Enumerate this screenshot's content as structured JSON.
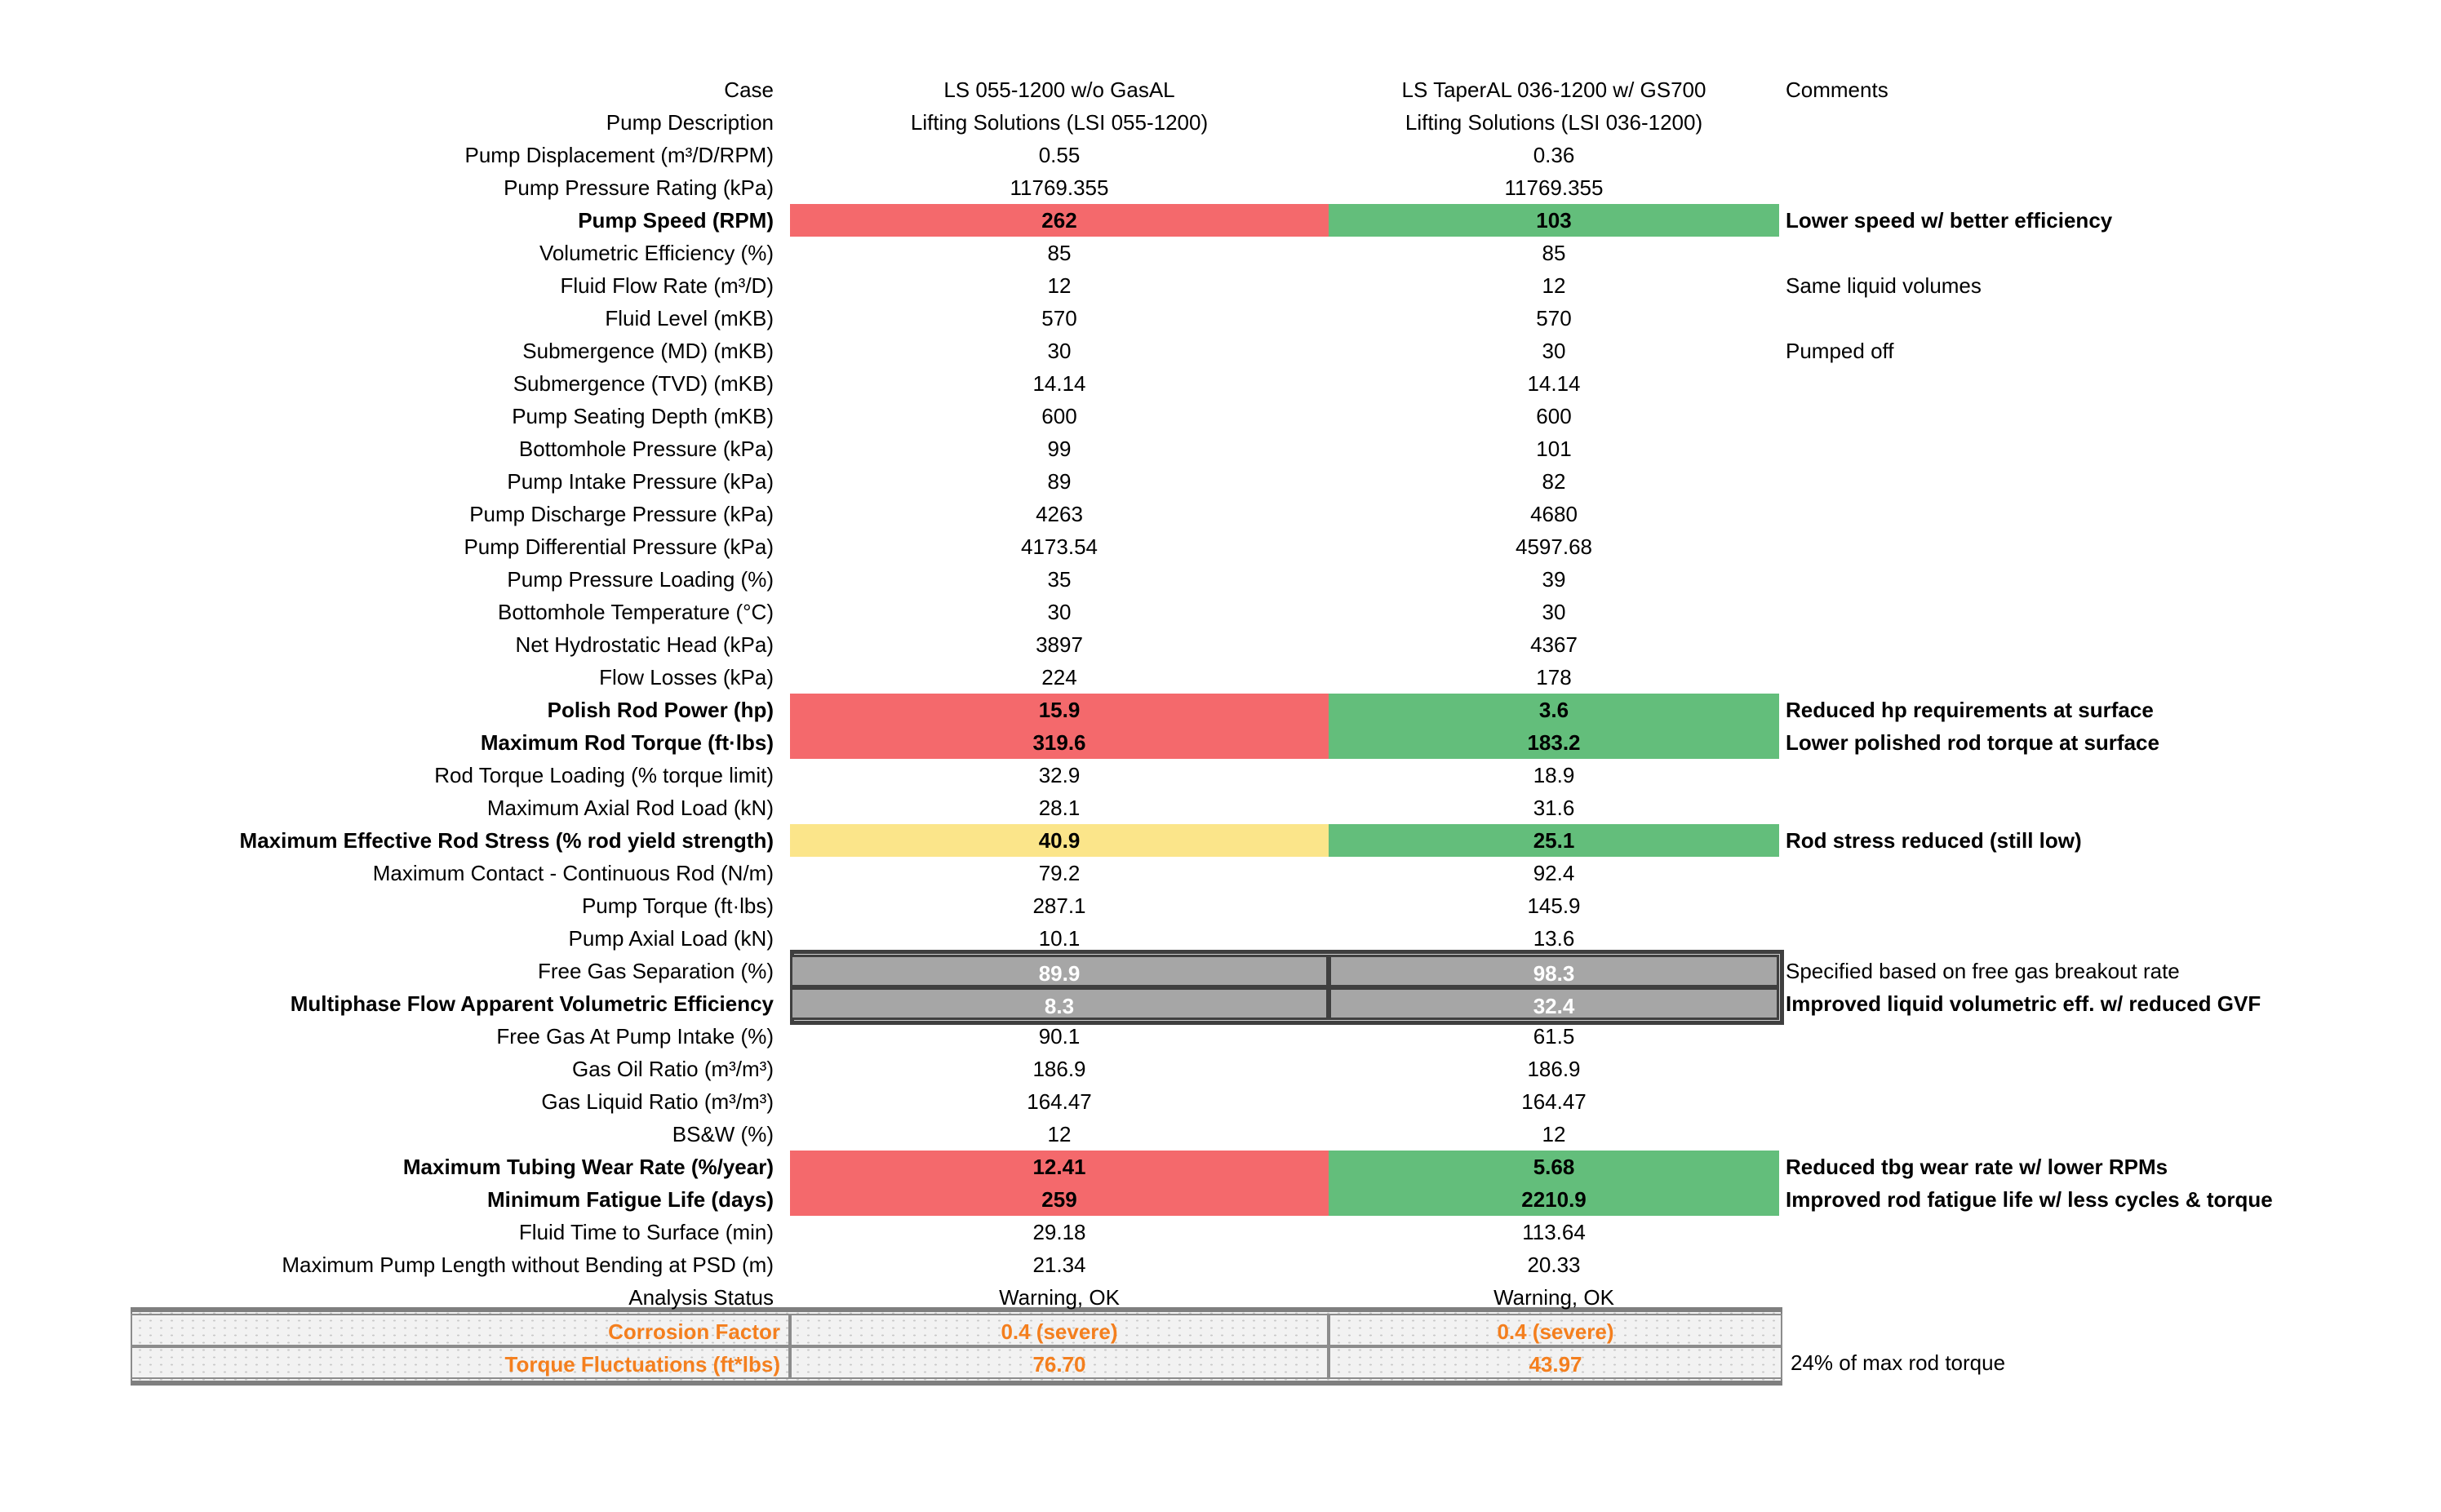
{
  "sheet_title": "Pump case comparison table",
  "colors": {
    "bad_red": "#F4696C",
    "good_green": "#63BE7B",
    "warn_yellow": "#FBE58A",
    "gray_fill": "#A6A6A6",
    "gray_border": "#3F3F3F",
    "panel_fill": "#F2F2F2",
    "panel_border": "#808080",
    "status_orange": "#F47F1E",
    "text": "#000000",
    "gray_cell_text": "#FFFFFF"
  },
  "rows": [
    {
      "label": "Case",
      "v1": "LS 055-1200 w/o GasAL",
      "v2": "LS TaperAL 036-1200 w/ GS700",
      "comment": "Comments",
      "style": "plain",
      "lb": false,
      "vb": false,
      "cb": false
    },
    {
      "label": "Pump Description",
      "v1": "Lifting Solutions (LSI 055-1200)",
      "v2": "Lifting Solutions (LSI 036-1200)",
      "comment": "",
      "style": "plain",
      "lb": false,
      "vb": false,
      "cb": false
    },
    {
      "label": "Pump Displacement (m³/D/RPM)",
      "v1": "0.55",
      "v2": "0.36",
      "comment": "",
      "style": "plain",
      "lb": false,
      "vb": false,
      "cb": false
    },
    {
      "label": "Pump Pressure Rating (kPa)",
      "v1": "11769.355",
      "v2": "11769.355",
      "comment": "",
      "style": "plain",
      "lb": false,
      "vb": false,
      "cb": false
    },
    {
      "label": "Pump Speed (RPM)",
      "v1": "262",
      "v2": "103",
      "comment": "Lower speed w/ better efficiency",
      "style": "red-green",
      "lb": true,
      "vb": true,
      "cb": true
    },
    {
      "label": "Volumetric Efficiency (%)",
      "v1": "85",
      "v2": "85",
      "comment": "",
      "style": "plain",
      "lb": false,
      "vb": false,
      "cb": false
    },
    {
      "label": "Fluid Flow Rate (m³/D)",
      "v1": "12",
      "v2": "12",
      "comment": "Same liquid volumes",
      "style": "plain",
      "lb": false,
      "vb": false,
      "cb": false
    },
    {
      "label": "Fluid Level (mKB)",
      "v1": "570",
      "v2": "570",
      "comment": "",
      "style": "plain",
      "lb": false,
      "vb": false,
      "cb": false
    },
    {
      "label": "Submergence (MD) (mKB)",
      "v1": "30",
      "v2": "30",
      "comment": "Pumped off",
      "style": "plain",
      "lb": false,
      "vb": false,
      "cb": false
    },
    {
      "label": "Submergence (TVD) (mKB)",
      "v1": "14.14",
      "v2": "14.14",
      "comment": "",
      "style": "plain",
      "lb": false,
      "vb": false,
      "cb": false
    },
    {
      "label": "Pump Seating Depth (mKB)",
      "v1": "600",
      "v2": "600",
      "comment": "",
      "style": "plain",
      "lb": false,
      "vb": false,
      "cb": false
    },
    {
      "label": "Bottomhole Pressure (kPa)",
      "v1": "99",
      "v2": "101",
      "comment": "",
      "style": "plain",
      "lb": false,
      "vb": false,
      "cb": false
    },
    {
      "label": "Pump Intake Pressure (kPa)",
      "v1": "89",
      "v2": "82",
      "comment": "",
      "style": "plain",
      "lb": false,
      "vb": false,
      "cb": false
    },
    {
      "label": "Pump Discharge Pressure (kPa)",
      "v1": "4263",
      "v2": "4680",
      "comment": "",
      "style": "plain",
      "lb": false,
      "vb": false,
      "cb": false
    },
    {
      "label": "Pump Differential Pressure (kPa)",
      "v1": "4173.54",
      "v2": "4597.68",
      "comment": "",
      "style": "plain",
      "lb": false,
      "vb": false,
      "cb": false
    },
    {
      "label": "Pump Pressure Loading (%)",
      "v1": "35",
      "v2": "39",
      "comment": "",
      "style": "plain",
      "lb": false,
      "vb": false,
      "cb": false
    },
    {
      "label": "Bottomhole Temperature (°C)",
      "v1": "30",
      "v2": "30",
      "comment": "",
      "style": "plain",
      "lb": false,
      "vb": false,
      "cb": false
    },
    {
      "label": "Net Hydrostatic Head (kPa)",
      "v1": "3897",
      "v2": "4367",
      "comment": "",
      "style": "plain",
      "lb": false,
      "vb": false,
      "cb": false
    },
    {
      "label": "Flow Losses (kPa)",
      "v1": "224",
      "v2": "178",
      "comment": "",
      "style": "plain",
      "lb": false,
      "vb": false,
      "cb": false
    },
    {
      "label": "Polish Rod Power (hp)",
      "v1": "15.9",
      "v2": "3.6",
      "comment": "Reduced hp requirements at surface",
      "style": "red-green",
      "lb": true,
      "vb": true,
      "cb": true
    },
    {
      "label": "Maximum Rod Torque (ft·lbs)",
      "v1": "319.6",
      "v2": "183.2",
      "comment": "Lower polished rod torque at surface",
      "style": "red-green",
      "lb": true,
      "vb": true,
      "cb": true
    },
    {
      "label": "Rod Torque Loading (% torque limit)",
      "v1": "32.9",
      "v2": "18.9",
      "comment": "",
      "style": "plain",
      "lb": false,
      "vb": false,
      "cb": false
    },
    {
      "label": "Maximum Axial Rod Load (kN)",
      "v1": "28.1",
      "v2": "31.6",
      "comment": "",
      "style": "plain",
      "lb": false,
      "vb": false,
      "cb": false
    },
    {
      "label": "Maximum Effective Rod Stress (% rod yield strength)",
      "v1": "40.9",
      "v2": "25.1",
      "comment": "Rod stress reduced (still low)",
      "style": "yellow-green",
      "lb": true,
      "vb": true,
      "cb": true
    },
    {
      "label": "Maximum Contact - Continuous Rod (N/m)",
      "v1": "79.2",
      "v2": "92.4",
      "comment": "",
      "style": "plain",
      "lb": false,
      "vb": false,
      "cb": false
    },
    {
      "label": "Pump Torque (ft·lbs)",
      "v1": "287.1",
      "v2": "145.9",
      "comment": "",
      "style": "plain",
      "lb": false,
      "vb": false,
      "cb": false
    },
    {
      "label": "Pump Axial Load (kN)",
      "v1": "10.1",
      "v2": "13.6",
      "comment": "",
      "style": "plain",
      "lb": false,
      "vb": false,
      "cb": false
    },
    {
      "label": "Free Gas Separation (%)",
      "v1": "89.9",
      "v2": "98.3",
      "comment": "Specified based on free gas breakout rate",
      "style": "gray",
      "lb": false,
      "vb": true,
      "cb": false
    },
    {
      "label": "Multiphase Flow Apparent Volumetric Efficiency",
      "v1": "8.3",
      "v2": "32.4",
      "comment": "Improved liquid volumetric eff. w/ reduced GVF",
      "style": "gray",
      "lb": true,
      "vb": true,
      "cb": true
    },
    {
      "label": "Free Gas At Pump Intake (%)",
      "v1": "90.1",
      "v2": "61.5",
      "comment": "",
      "style": "plain",
      "lb": false,
      "vb": false,
      "cb": false
    },
    {
      "label": "Gas Oil Ratio (m³/m³)",
      "v1": "186.9",
      "v2": "186.9",
      "comment": "",
      "style": "plain",
      "lb": false,
      "vb": false,
      "cb": false
    },
    {
      "label": "Gas Liquid Ratio (m³/m³)",
      "v1": "164.47",
      "v2": "164.47",
      "comment": "",
      "style": "plain",
      "lb": false,
      "vb": false,
      "cb": false
    },
    {
      "label": "BS&W (%)",
      "v1": "12",
      "v2": "12",
      "comment": "",
      "style": "plain",
      "lb": false,
      "vb": false,
      "cb": false
    },
    {
      "label": "Maximum Tubing Wear Rate (%/year)",
      "v1": "12.41",
      "v2": "5.68",
      "comment": "Reduced tbg wear rate w/ lower RPMs",
      "style": "red-green",
      "lb": true,
      "vb": true,
      "cb": true
    },
    {
      "label": "Minimum Fatigue Life (days)",
      "v1": "259",
      "v2": "2210.9",
      "comment": "Improved rod fatigue life w/ less cycles & torque",
      "style": "red-green",
      "lb": true,
      "vb": true,
      "cb": true
    },
    {
      "label": "Fluid Time to Surface (min)",
      "v1": "29.18",
      "v2": "113.64",
      "comment": "",
      "style": "plain",
      "lb": false,
      "vb": false,
      "cb": false
    },
    {
      "label": "Maximum Pump Length without Bending at PSD (m)",
      "v1": "21.34",
      "v2": "20.33",
      "comment": "",
      "style": "plain",
      "lb": false,
      "vb": false,
      "cb": false
    },
    {
      "label": "Analysis Status",
      "v1": "Warning, OK",
      "v2": "Warning, OK",
      "comment": "",
      "style": "plain",
      "lb": false,
      "vb": false,
      "cb": false
    },
    {
      "label": "Corrosion Factor",
      "v1": "0.4 (severe)",
      "v2": "0.4 (severe)",
      "comment": "",
      "style": "panel",
      "lb": true,
      "vb": true,
      "cb": false
    },
    {
      "label": "Torque Fluctuations (ft*lbs)",
      "v1": "76.70",
      "v2": "43.97",
      "comment": "24% of max rod torque",
      "style": "panel",
      "lb": true,
      "vb": true,
      "cb": false
    }
  ]
}
